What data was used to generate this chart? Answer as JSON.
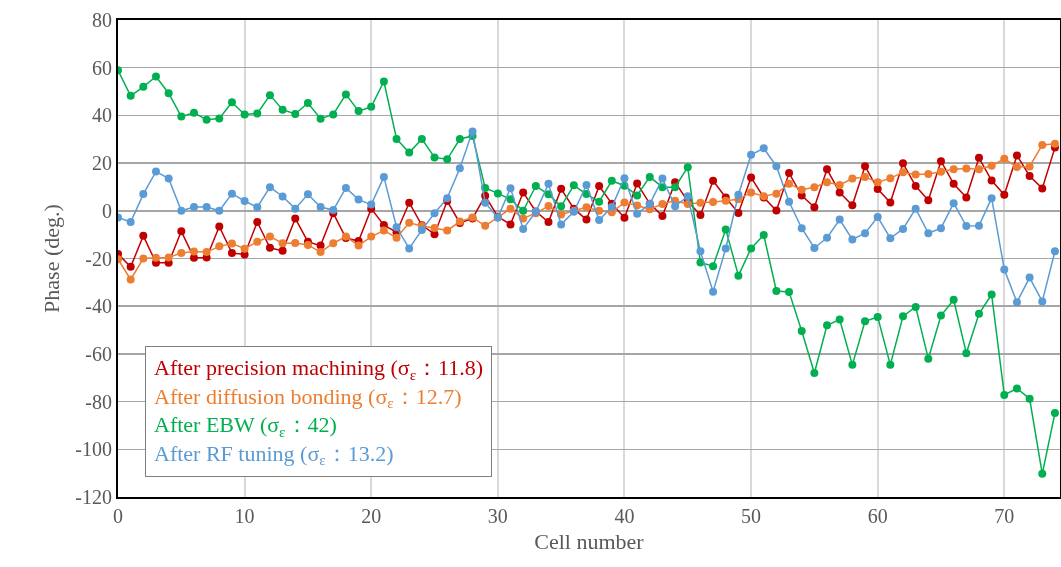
{
  "chart_data": {
    "type": "line",
    "xlabel": "Cell number",
    "ylabel": "Phase (deg.)",
    "x": [
      0,
      1,
      2,
      3,
      4,
      5,
      6,
      7,
      8,
      9,
      10,
      11,
      12,
      13,
      14,
      15,
      16,
      17,
      18,
      19,
      20,
      21,
      22,
      23,
      24,
      25,
      26,
      27,
      28,
      29,
      30,
      31,
      32,
      33,
      34,
      35,
      36,
      37,
      38,
      39,
      40,
      41,
      42,
      43,
      44,
      45,
      46,
      47,
      48,
      49,
      50,
      51,
      52,
      53,
      54,
      55,
      56,
      57,
      58,
      59,
      60,
      61,
      62,
      63,
      64,
      65,
      66,
      67,
      68,
      69,
      70,
      71,
      72,
      73,
      74
    ],
    "series": [
      {
        "name": "After precision machining (σ$_{ε}$：11.8)",
        "color": "#c00000",
        "values": [
          -18.1,
          -23.5,
          -10.5,
          -21.8,
          -21.8,
          -8.6,
          -19.7,
          -19.6,
          -6.6,
          -17.7,
          -18.3,
          -4.7,
          -15.5,
          -16.8,
          -3.2,
          -13,
          -14.6,
          -1,
          -11.4,
          -12.7,
          0.9,
          -6,
          -9,
          3.4,
          -6.1,
          -9.8,
          4.1,
          -5.1,
          -3.2,
          6.3,
          -2.5,
          -5.7,
          7.7,
          -0.3,
          -4.7,
          9.2,
          0.9,
          -3.7,
          10.4,
          3,
          -2.9,
          11.4,
          3,
          -2.2,
          12,
          4,
          -1.8,
          12.6,
          5.6,
          -0.9,
          14,
          5.6,
          0.1,
          15.8,
          6.4,
          1.5,
          17.4,
          7.7,
          2.3,
          18.7,
          9.1,
          3.5,
          19.9,
          10.4,
          4.4,
          20.8,
          11.3,
          5.6,
          22.2,
          12.7,
          6.7,
          23.2,
          14.6,
          9.4,
          26.5
        ]
      },
      {
        "name": "After diffusion bonding (σ$_{ε}$：12.7)",
        "color": "#ed7d31",
        "values": [
          -20.3,
          -28.8,
          -20,
          -19.7,
          -19.6,
          -17.7,
          -17.1,
          -17.3,
          -14.9,
          -13.7,
          -15.9,
          -13,
          -10.8,
          -13.6,
          -13.5,
          -14.3,
          -17.3,
          -13.6,
          -10.8,
          -14.6,
          -10.8,
          -8.3,
          -11.3,
          -5,
          -6.4,
          -7.2,
          -8.3,
          -4.5,
          -2.8,
          -6.3,
          -2.8,
          0.9,
          -3.2,
          -1,
          2,
          -1.5,
          0,
          1.5,
          0,
          -0.6,
          3.5,
          2.2,
          0.7,
          2.9,
          4.2,
          2.9,
          3.4,
          3.7,
          4.2,
          4.8,
          7.7,
          6.1,
          7.2,
          11.3,
          8.8,
          9.9,
          12,
          10.8,
          13.5,
          14.2,
          12,
          13.6,
          16.2,
          15.2,
          15.4,
          16.4,
          17.4,
          17.7,
          17.4,
          18.9,
          21.8,
          18.4,
          18.6,
          27.6,
          28.1
        ]
      },
      {
        "name": "After EBW (σ$_{ε}$：42)",
        "color": "#00b050",
        "values": [
          58.9,
          48.2,
          52,
          56.3,
          49.3,
          39.5,
          41.1,
          38.2,
          38.7,
          45.5,
          40.4,
          40.8,
          48.5,
          42.4,
          40.6,
          45.2,
          38.6,
          40.4,
          48.8,
          41.8,
          43.6,
          54.2,
          30.1,
          24.4,
          30.1,
          22.4,
          21.6,
          30.1,
          31.4,
          9.6,
          7.3,
          4.8,
          0,
          10.4,
          6.9,
          1.9,
          10.7,
          7,
          3.8,
          12.6,
          10.5,
          6.4,
          14.2,
          9.9,
          9.9,
          18.3,
          -21.7,
          -23.2,
          -7.8,
          -27.2,
          -15.8,
          -10.1,
          -33.6,
          -34,
          -50.4,
          -68,
          -48,
          -45.6,
          -64.6,
          -46.3,
          -44.5,
          -64.6,
          -44.2,
          -40.3,
          -62,
          -43.9,
          -37.3,
          -59.7,
          -43.2,
          -35.1,
          -77.2,
          -74.5,
          -78.8,
          -110.3,
          -84.8
        ]
      },
      {
        "name": "After RF tuning (σ$_{ε}$：13.2)",
        "color": "#5b9bd5",
        "values": [
          -2.8,
          -4.7,
          7,
          16.5,
          13.5,
          0,
          1.6,
          1.6,
          0,
          7.2,
          4.1,
          1.5,
          9.9,
          6,
          0.9,
          6.9,
          1.6,
          0.3,
          9.6,
          4.7,
          2.6,
          14.2,
          -6.9,
          -15.8,
          -8,
          -1,
          5.3,
          17.8,
          33.3,
          3.4,
          -2.8,
          9.5,
          -7.6,
          -0.4,
          11.3,
          -5.7,
          -0.4,
          10.8,
          -3.9,
          1.6,
          13.7,
          -1.2,
          2.8,
          13.5,
          1.9,
          6.1,
          -17,
          -33.9,
          -15.8,
          6.7,
          23.5,
          26.2,
          18.7,
          3.8,
          -7.3,
          -15.6,
          -11.3,
          -3.7,
          -12,
          -9.4,
          -2.6,
          -11.5,
          -7.6,
          0.9,
          -9.4,
          -7.3,
          3.2,
          -6.4,
          -6.3,
          5.3,
          -24.6,
          -38.3,
          -28,
          -38,
          -17
        ]
      }
    ],
    "xlim": [
      0,
      74.4
    ],
    "xticks": [
      0,
      10,
      20,
      30,
      40,
      50,
      60,
      70
    ],
    "ylim": [
      -120,
      80
    ],
    "yticks": [
      -120,
      -100,
      -80,
      -60,
      -40,
      -20,
      0,
      20,
      40,
      60,
      80
    ],
    "grid": true,
    "legend": "bottom left",
    "marker": "circle",
    "line_style": "solid"
  }
}
